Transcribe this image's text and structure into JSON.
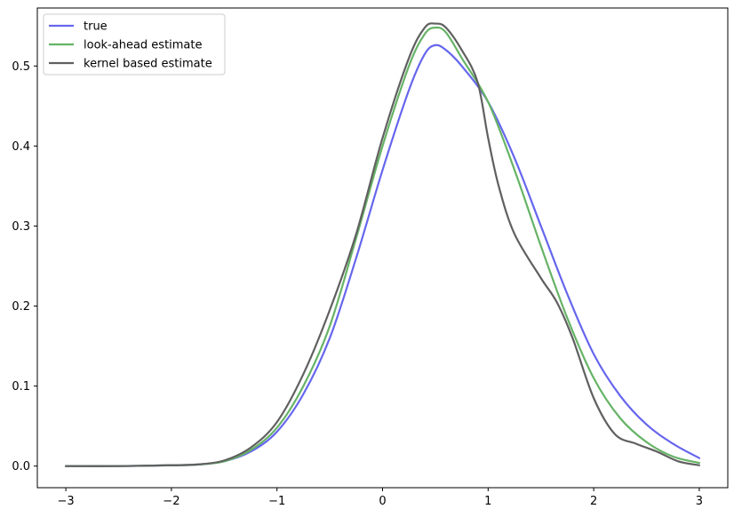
{
  "chart_data": {
    "type": "line",
    "title": "",
    "xlabel": "",
    "ylabel": "",
    "xlim": [
      -3.27,
      3.27
    ],
    "ylim": [
      -0.027,
      0.5725
    ],
    "xticks": [
      -3,
      -2,
      -1,
      0,
      1,
      2,
      3
    ],
    "xtick_labels": [
      "−3",
      "−2",
      "−1",
      "0",
      "1",
      "2",
      "3"
    ],
    "yticks": [
      0.0,
      0.1,
      0.2,
      0.3,
      0.4,
      0.5
    ],
    "ytick_labels": [
      "0.0",
      "0.1",
      "0.2",
      "0.3",
      "0.4",
      "0.5"
    ],
    "grid": false,
    "legend_position": "upper-left",
    "series": [
      {
        "name": "true",
        "color": "#6666ee",
        "points": [
          [
            -3.0,
            0.0
          ],
          [
            -2.5,
            0.0
          ],
          [
            -2.0,
            0.001
          ],
          [
            -1.75,
            0.002
          ],
          [
            -1.5,
            0.006
          ],
          [
            -1.25,
            0.018
          ],
          [
            -1.0,
            0.043
          ],
          [
            -0.75,
            0.09
          ],
          [
            -0.5,
            0.16
          ],
          [
            -0.25,
            0.26
          ],
          [
            0.0,
            0.37
          ],
          [
            0.25,
            0.47
          ],
          [
            0.4,
            0.515
          ],
          [
            0.5,
            0.526
          ],
          [
            0.6,
            0.52
          ],
          [
            0.75,
            0.5
          ],
          [
            1.0,
            0.455
          ],
          [
            1.25,
            0.385
          ],
          [
            1.5,
            0.3
          ],
          [
            1.75,
            0.215
          ],
          [
            2.0,
            0.14
          ],
          [
            2.25,
            0.088
          ],
          [
            2.5,
            0.052
          ],
          [
            2.75,
            0.028
          ],
          [
            3.0,
            0.01
          ]
        ]
      },
      {
        "name": "look-ahead estimate",
        "color": "#66b366",
        "points": [
          [
            -3.0,
            0.0
          ],
          [
            -2.5,
            0.0
          ],
          [
            -2.0,
            0.001
          ],
          [
            -1.75,
            0.002
          ],
          [
            -1.5,
            0.006
          ],
          [
            -1.25,
            0.02
          ],
          [
            -1.0,
            0.048
          ],
          [
            -0.75,
            0.1
          ],
          [
            -0.5,
            0.175
          ],
          [
            -0.25,
            0.285
          ],
          [
            0.0,
            0.4
          ],
          [
            0.25,
            0.5
          ],
          [
            0.4,
            0.54
          ],
          [
            0.5,
            0.548
          ],
          [
            0.6,
            0.542
          ],
          [
            0.75,
            0.51
          ],
          [
            1.0,
            0.455
          ],
          [
            1.25,
            0.37
          ],
          [
            1.5,
            0.275
          ],
          [
            1.75,
            0.185
          ],
          [
            2.0,
            0.11
          ],
          [
            2.25,
            0.06
          ],
          [
            2.5,
            0.03
          ],
          [
            2.75,
            0.012
          ],
          [
            3.0,
            0.004
          ]
        ]
      },
      {
        "name": "kernel based estimate",
        "color": "#606060",
        "points": [
          [
            -3.0,
            0.0
          ],
          [
            -2.5,
            0.0
          ],
          [
            -2.0,
            0.001
          ],
          [
            -1.75,
            0.002
          ],
          [
            -1.5,
            0.007
          ],
          [
            -1.25,
            0.023
          ],
          [
            -1.0,
            0.055
          ],
          [
            -0.75,
            0.115
          ],
          [
            -0.5,
            0.195
          ],
          [
            -0.25,
            0.29
          ],
          [
            0.0,
            0.41
          ],
          [
            0.25,
            0.51
          ],
          [
            0.4,
            0.548
          ],
          [
            0.5,
            0.553
          ],
          [
            0.6,
            0.548
          ],
          [
            0.75,
            0.52
          ],
          [
            0.9,
            0.48
          ],
          [
            1.0,
            0.41
          ],
          [
            1.1,
            0.35
          ],
          [
            1.25,
            0.29
          ],
          [
            1.5,
            0.235
          ],
          [
            1.65,
            0.205
          ],
          [
            1.8,
            0.16
          ],
          [
            2.0,
            0.085
          ],
          [
            2.2,
            0.04
          ],
          [
            2.4,
            0.028
          ],
          [
            2.6,
            0.018
          ],
          [
            2.8,
            0.006
          ],
          [
            3.0,
            0.001
          ]
        ]
      }
    ]
  }
}
